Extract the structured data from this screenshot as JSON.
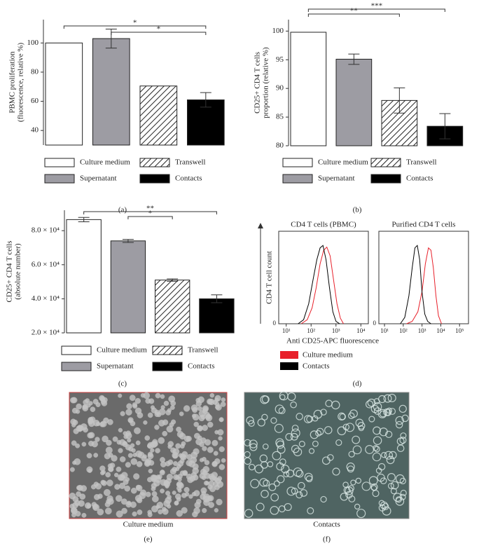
{
  "chart_data": [
    {
      "type": "bar",
      "panel_label": "(a)",
      "ylabel": [
        "PBMC proliferation",
        "(fluorescence, relative %)"
      ],
      "categories": [
        "Culture medium",
        "Supernatant",
        "Transwell",
        "Contacts"
      ],
      "values": [
        100,
        103,
        70.5,
        61
      ],
      "errors": [
        null,
        6.5,
        null,
        5
      ],
      "colors": [
        "#ffffff",
        "#9d9ca3",
        "#ffffff",
        "#000000"
      ],
      "hatch": [
        false,
        false,
        true,
        false
      ],
      "ylim": [
        30,
        116
      ],
      "yticks": [
        40,
        60,
        80,
        100
      ],
      "significance": [
        {
          "pair": [
            0,
            3
          ],
          "label": "*"
        },
        {
          "pair": [
            1,
            3
          ],
          "label": "*"
        }
      ]
    },
    {
      "type": "bar",
      "panel_label": "(b)",
      "ylabel": [
        "CD25+ CD4 T cells",
        "proportion (relative %)"
      ],
      "categories": [
        "Culture medium",
        "Supernatant",
        "Transwell",
        "Contacts"
      ],
      "values": [
        99.8,
        95.1,
        87.9,
        83.4
      ],
      "errors": [
        null,
        0.9,
        2.2,
        2.2
      ],
      "colors": [
        "#ffffff",
        "#9d9ca3",
        "#ffffff",
        "#000000"
      ],
      "hatch": [
        false,
        false,
        true,
        false
      ],
      "ylim": [
        80,
        102
      ],
      "yticks": [
        80,
        85,
        90,
        95,
        100
      ],
      "significance": [
        {
          "pair": [
            0,
            2
          ],
          "label": "**"
        },
        {
          "pair": [
            0,
            3
          ],
          "label": "***"
        }
      ]
    },
    {
      "type": "bar",
      "panel_label": "(c)",
      "ylabel": [
        "CD25+ CD4 T cells",
        "(absolute number)"
      ],
      "categories": [
        "Culture medium",
        "Supernatant",
        "Transwell",
        "Contacts"
      ],
      "values": [
        86500,
        74000,
        51000,
        40000
      ],
      "errors": [
        1300,
        900,
        700,
        2300
      ],
      "colors": [
        "#ffffff",
        "#9d9ca3",
        "#ffffff",
        "#000000"
      ],
      "hatch": [
        false,
        false,
        true,
        false
      ],
      "ylim": [
        20000,
        92000
      ],
      "yticks": [
        {
          "value": 20000,
          "label": "2.0 × 10⁴"
        },
        {
          "value": 40000,
          "label": "4.0 × 10⁴"
        },
        {
          "value": 60000,
          "label": "6.0 × 10⁴"
        },
        {
          "value": 80000,
          "label": "8.0 × 10⁴"
        }
      ],
      "significance": [
        {
          "pair": [
            1,
            2
          ],
          "label": "*"
        },
        {
          "pair": [
            0,
            3
          ],
          "label": "**"
        }
      ]
    },
    {
      "type": "line",
      "panel_label": "(d)",
      "ylabel": "CD4 T cell count",
      "xlabel": "Anti CD25-APC fluorescence",
      "log_x": true,
      "legend": [
        "Culture medium",
        "Contacts"
      ],
      "subplots": [
        {
          "title": "CD4 T cells (PBMC)",
          "xlim": [
            5,
            20000
          ],
          "ylim": [
            0,
            100
          ],
          "yticks": [
            0
          ],
          "xticks": [
            {
              "value": 10,
              "label": "10¹"
            },
            {
              "value": 100,
              "label": "10²"
            },
            {
              "value": 1000,
              "label": "10³"
            },
            {
              "value": 10000,
              "label": "10⁴"
            }
          ],
          "series": [
            {
              "color": "#e8202a",
              "x": [
                40,
                70,
                110,
                160,
                230,
                320,
                430,
                580,
                800,
                1100,
                1500,
                2000
              ],
              "values": [
                0,
                5,
                20,
                45,
                75,
                92,
                96,
                85,
                55,
                25,
                7,
                0
              ]
            },
            {
              "color": "#000000",
              "x": [
                30,
                50,
                80,
                120,
                170,
                230,
                300,
                400,
                550,
                750,
                1000,
                1400
              ],
              "values": [
                0,
                5,
                25,
                55,
                80,
                95,
                98,
                80,
                45,
                15,
                3,
                0
              ]
            }
          ]
        },
        {
          "title": "Purified CD4 T cells",
          "xlim": [
            5,
            300000
          ],
          "ylim": [
            0,
            100
          ],
          "yticks": [
            0
          ],
          "xticks": [
            {
              "value": 10,
              "label": "10¹"
            },
            {
              "value": 100,
              "label": "10²"
            },
            {
              "value": 1000,
              "label": "10³"
            },
            {
              "value": 10000,
              "label": "10⁴"
            },
            {
              "value": 100000,
              "label": "10⁵"
            }
          ],
          "series": [
            {
              "color": "#e8202a",
              "x": [
                150,
                300,
                600,
                1000,
                1500,
                2200,
                3000,
                4000,
                5500,
                7500,
                11000
              ],
              "values": [
                0,
                3,
                15,
                40,
                75,
                95,
                92,
                70,
                35,
                10,
                0
              ]
            },
            {
              "color": "#000000",
              "x": [
                70,
                120,
                200,
                300,
                420,
                560,
                750,
                1000,
                1400,
                2000,
                3000
              ],
              "values": [
                0,
                8,
                35,
                70,
                95,
                98,
                80,
                40,
                12,
                3,
                0
              ]
            }
          ]
        }
      ]
    }
  ],
  "images": [
    {
      "caption": "Culture medium",
      "label": "(e)"
    },
    {
      "caption": "Contacts",
      "label": "(f)"
    }
  ]
}
